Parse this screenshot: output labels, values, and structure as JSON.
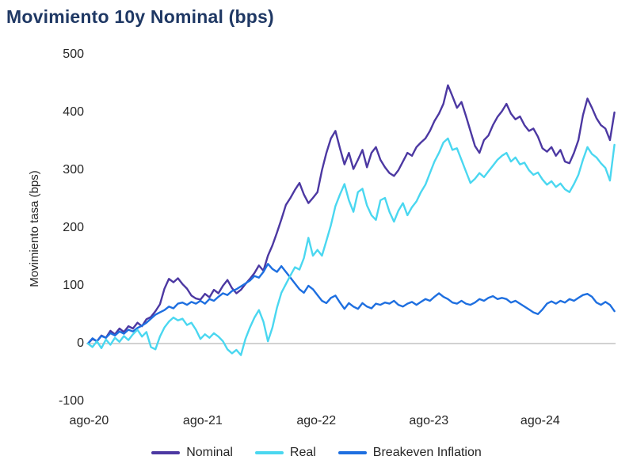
{
  "colors": {
    "title": "#1F3864",
    "tick_text": "#262626",
    "gridline": "#A6A6A6",
    "nominal": "#4C38A2",
    "real": "#4AD7F0",
    "breakeven": "#1E6FE0"
  },
  "legend": {
    "items": [
      {
        "label": "Nominal",
        "color": "#4C38A2"
      },
      {
        "label": "Real",
        "color": "#4AD7F0"
      },
      {
        "label": "Breakeven Inflation",
        "color": "#1E6FE0"
      }
    ]
  },
  "chart_data": {
    "type": "line",
    "title": "Movimiento 10y Nominal (bps)",
    "xlabel": "",
    "ylabel": "Movimiento tasa (bps)",
    "ylim": [
      -100,
      500
    ],
    "grid": "zero-line-only",
    "legend_position": "bottom-center",
    "x_unit": "years since ago-20 (Aug 2020), daily movement series",
    "x": {
      "start": 0,
      "step": 0.04,
      "count": 118
    },
    "x_ticks": [
      {
        "label": "ago-20",
        "t": 0.01
      },
      {
        "label": "ago-21",
        "t": 1.02
      },
      {
        "label": "ago-22",
        "t": 2.03
      },
      {
        "label": "ago-23",
        "t": 3.03
      },
      {
        "label": "ago-24",
        "t": 4.02
      }
    ],
    "y_ticks": [
      -100,
      0,
      100,
      200,
      300,
      400,
      500
    ],
    "series": [
      {
        "name": "Nominal",
        "color": "#4C38A2",
        "values": [
          0,
          8,
          4,
          14,
          10,
          22,
          16,
          26,
          20,
          30,
          26,
          36,
          30,
          42,
          46,
          56,
          68,
          95,
          112,
          106,
          113,
          103,
          95,
          83,
          78,
          76,
          86,
          80,
          93,
          87,
          100,
          110,
          96,
          87,
          93,
          103,
          112,
          122,
          135,
          126,
          152,
          170,
          192,
          215,
          240,
          252,
          266,
          278,
          258,
          243,
          252,
          262,
          300,
          330,
          355,
          368,
          338,
          310,
          330,
          302,
          318,
          335,
          305,
          330,
          340,
          318,
          305,
          295,
          290,
          300,
          315,
          330,
          325,
          340,
          348,
          355,
          368,
          385,
          398,
          415,
          447,
          428,
          408,
          418,
          394,
          368,
          342,
          330,
          352,
          360,
          378,
          392,
          402,
          415,
          398,
          388,
          393,
          378,
          368,
          372,
          358,
          338,
          332,
          340,
          325,
          335,
          315,
          312,
          330,
          352,
          395,
          424,
          408,
          390,
          378,
          372,
          352,
          400
        ]
      },
      {
        "name": "Real",
        "color": "#4AD7F0",
        "values": [
          0,
          -6,
          4,
          -8,
          7,
          -2,
          10,
          3,
          13,
          6,
          16,
          24,
          12,
          20,
          -6,
          -10,
          12,
          28,
          38,
          45,
          40,
          43,
          32,
          36,
          24,
          8,
          16,
          10,
          18,
          12,
          4,
          -10,
          -17,
          -11,
          -20,
          8,
          28,
          45,
          58,
          38,
          4,
          28,
          62,
          88,
          103,
          118,
          132,
          128,
          148,
          183,
          152,
          162,
          152,
          178,
          205,
          238,
          258,
          276,
          248,
          228,
          262,
          268,
          239,
          222,
          214,
          248,
          252,
          228,
          211,
          230,
          243,
          222,
          236,
          246,
          262,
          275,
          295,
          315,
          330,
          348,
          355,
          335,
          338,
          318,
          298,
          278,
          285,
          295,
          288,
          298,
          308,
          318,
          325,
          330,
          315,
          322,
          310,
          313,
          300,
          292,
          296,
          284,
          275,
          281,
          271,
          277,
          267,
          262,
          276,
          292,
          318,
          340,
          328,
          322,
          312,
          304,
          282,
          344
        ]
      },
      {
        "name": "Breakeven Inflation",
        "color": "#1E6FE0",
        "values": [
          0,
          9,
          4,
          13,
          10,
          18,
          14,
          21,
          17,
          24,
          21,
          27,
          31,
          36,
          43,
          50,
          54,
          58,
          64,
          61,
          69,
          71,
          67,
          72,
          69,
          74,
          69,
          77,
          74,
          81,
          87,
          84,
          91,
          94,
          99,
          104,
          109,
          117,
          114,
          124,
          138,
          129,
          124,
          134,
          124,
          114,
          104,
          94,
          88,
          100,
          94,
          84,
          74,
          70,
          79,
          83,
          71,
          60,
          70,
          64,
          60,
          70,
          64,
          61,
          69,
          67,
          71,
          69,
          74,
          67,
          64,
          69,
          72,
          67,
          72,
          77,
          74,
          81,
          87,
          81,
          77,
          71,
          69,
          74,
          69,
          67,
          71,
          77,
          74,
          79,
          82,
          77,
          79,
          77,
          71,
          74,
          69,
          64,
          59,
          54,
          51,
          59,
          69,
          73,
          69,
          74,
          71,
          77,
          74,
          79,
          84,
          86,
          81,
          71,
          67,
          72,
          67,
          56
        ]
      }
    ]
  }
}
